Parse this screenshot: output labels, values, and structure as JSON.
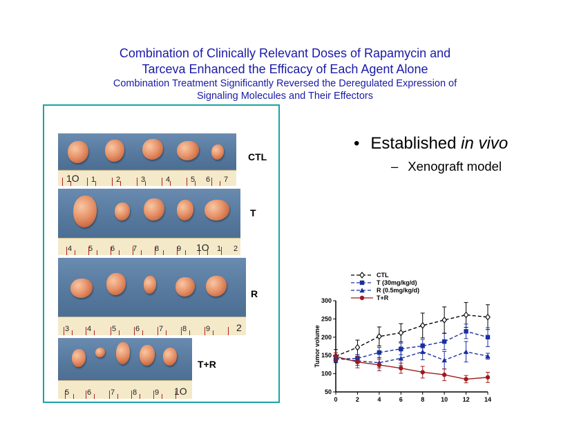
{
  "slide": {
    "title_line1": "Combination of Clinically Relevant Doses of Rapamycin and",
    "title_line2": "Tarceva Enhanced the Efficacy of Each Agent Alone",
    "subtitle_line1": "Combination Treatment Significantly Reversed the Deregulated Expression of",
    "subtitle_line2": "Signaling Molecules and Their Effectors",
    "bullet_symbol": "•",
    "bullet_main_prefix": "Established ",
    "bullet_main_italic": "in vivo",
    "bullet_dash": "–",
    "bullet_sub": "Xenograft model"
  },
  "photos": {
    "groups": [
      {
        "label": "CTL",
        "ruler_numbers": [
          "1O",
          "1",
          "2",
          "3",
          "4",
          "5",
          "6",
          "7"
        ]
      },
      {
        "label": "T",
        "ruler_numbers": [
          "4",
          "5",
          "6",
          "7",
          "8",
          "9",
          "1O",
          "1",
          "2"
        ]
      },
      {
        "label": "R",
        "ruler_numbers": [
          "3",
          "4",
          "5",
          "6",
          "7",
          "8",
          "9",
          "2"
        ]
      },
      {
        "label": "T+R",
        "ruler_numbers": [
          "5",
          "6",
          "7",
          "8",
          "9",
          "1O"
        ]
      }
    ],
    "colors": {
      "frame": "#1aa3a3",
      "cloth": "#5d7fa3",
      "ruler": "#f4e9c9"
    }
  },
  "chart_data": {
    "type": "line",
    "title": "",
    "xlabel": "",
    "ylabel": "Tumor volume",
    "xlim": [
      0,
      14
    ],
    "ylim": [
      50,
      300
    ],
    "xticks": [
      0,
      2,
      4,
      6,
      8,
      10,
      12,
      14
    ],
    "yticks": [
      50,
      100,
      150,
      200,
      250,
      300
    ],
    "legend_position": "top-left",
    "x": [
      0,
      2,
      4,
      6,
      8,
      10,
      12,
      14
    ],
    "series": [
      {
        "name": "CTL",
        "marker": "diamond-open",
        "line": "dashed",
        "color": "#000000",
        "values": [
          148,
          172,
          202,
          212,
          232,
          247,
          261,
          255
        ],
        "error": [
          18,
          20,
          26,
          25,
          34,
          36,
          34,
          34
        ]
      },
      {
        "name": "T (30mg/kg/d)",
        "marker": "square",
        "line": "dashed",
        "color": "#1a2fa0",
        "values": [
          140,
          142,
          158,
          168,
          176,
          188,
          216,
          200
        ],
        "error": [
          8,
          10,
          14,
          16,
          18,
          22,
          20,
          26
        ]
      },
      {
        "name": "R (0.5mg/kg/d)",
        "marker": "triangle",
        "line": "dashed",
        "color": "#1a2fa0",
        "values": [
          142,
          135,
          130,
          142,
          160,
          137,
          160,
          148
        ],
        "error": [
          8,
          12,
          14,
          20,
          22,
          24,
          28,
          8
        ]
      },
      {
        "name": "T+R",
        "marker": "circle",
        "line": "solid",
        "color": "#a01a1a",
        "values": [
          147,
          132,
          124,
          115,
          104,
          97,
          85,
          90
        ],
        "error": [
          10,
          16,
          16,
          14,
          16,
          16,
          10,
          14
        ]
      }
    ]
  }
}
